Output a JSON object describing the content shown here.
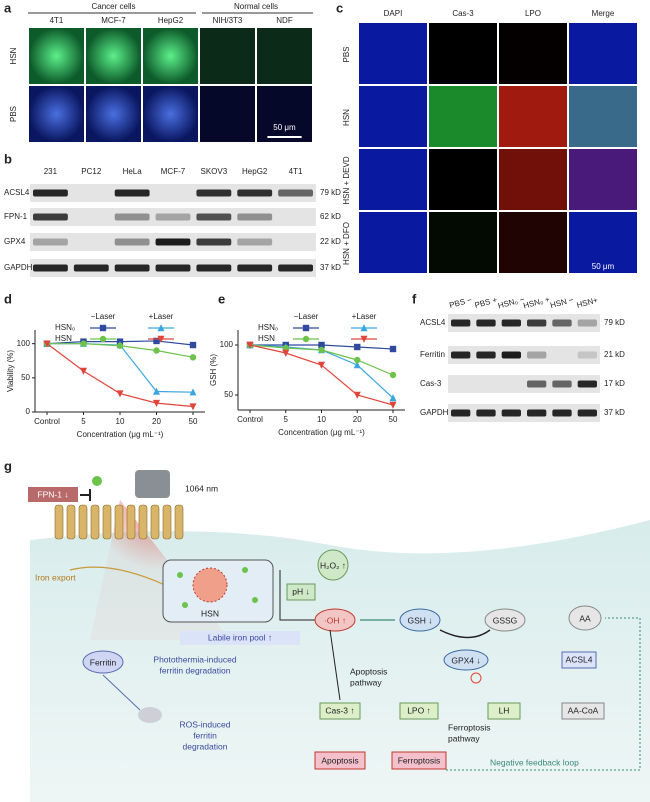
{
  "panel_a": {
    "label": "a",
    "groups": [
      "Cancer cells",
      "Normal cells"
    ],
    "columns": [
      "4T1",
      "MCF-7",
      "HepG2",
      "NIH/3T3",
      "NDF"
    ],
    "rows": [
      "HSN",
      "PBS"
    ],
    "scale": "50 μm"
  },
  "panel_b": {
    "label": "b",
    "lanes": [
      "231",
      "PC12",
      "HeLa",
      "MCF-7",
      "SKOV3",
      "HepG2",
      "4T1"
    ],
    "proteins": [
      {
        "name": "ACSL4",
        "size": "79 kD"
      },
      {
        "name": "FPN-1",
        "size": "62 kD"
      },
      {
        "name": "GPX4",
        "size": "22 kD"
      },
      {
        "name": "GAPDH",
        "size": "37 kD"
      }
    ]
  },
  "panel_c": {
    "label": "c",
    "columns": [
      "DAPI",
      "Cas-3",
      "LPO",
      "Merge"
    ],
    "rows": [
      "PBS",
      "HSN",
      "HSN + DEVD",
      "HSN + DFO"
    ],
    "scale": "50 μm"
  },
  "panel_d": {
    "label": "d",
    "type": "line",
    "ylabel": "Viability (%)",
    "xlabel": "Concentration (μg mL⁻¹)",
    "categories": [
      "Control",
      "5",
      "10",
      "20",
      "50"
    ],
    "ylim": [
      0,
      120
    ],
    "yticks": [
      0,
      50,
      100
    ],
    "legend": {
      "columns": [
        "−Laser",
        "+Laser"
      ],
      "rows": [
        "HSN₀",
        "HSN"
      ]
    },
    "series": [
      {
        "color": "#2f4a9e",
        "marker": "square",
        "values": [
          100,
          103,
          103,
          104,
          98
        ]
      },
      {
        "color": "#3aa6e0",
        "marker": "triangle-up",
        "values": [
          100,
          100,
          98,
          30,
          29
        ]
      },
      {
        "color": "#6cc24a",
        "marker": "circle",
        "values": [
          100,
          100,
          97,
          90,
          80
        ]
      },
      {
        "color": "#e0453c",
        "marker": "triangle-down",
        "values": [
          100,
          60,
          27,
          13,
          8
        ]
      }
    ]
  },
  "panel_e": {
    "label": "e",
    "type": "line",
    "ylabel": "GSH (%)",
    "xlabel": "Concentration (μg mL⁻¹)",
    "categories": [
      "Control",
      "5",
      "10",
      "20",
      "50"
    ],
    "ylim": [
      35,
      115
    ],
    "yticks": [
      50,
      100
    ],
    "legend": {
      "columns": [
        "−Laser",
        "+Laser"
      ],
      "rows": [
        "HSN₀",
        "HSN"
      ]
    },
    "series": [
      {
        "color": "#2f4a9e",
        "marker": "square",
        "values": [
          100,
          100,
          100,
          98,
          96
        ]
      },
      {
        "color": "#3aa6e0",
        "marker": "triangle-up",
        "values": [
          100,
          98,
          95,
          80,
          47
        ]
      },
      {
        "color": "#6cc24a",
        "marker": "circle",
        "values": [
          100,
          97,
          95,
          85,
          70
        ]
      },
      {
        "color": "#e0453c",
        "marker": "triangle-down",
        "values": [
          100,
          92,
          80,
          50,
          40
        ]
      }
    ]
  },
  "panel_f": {
    "label": "f",
    "lanes": [
      "PBS −",
      "PBS +",
      "HSN₀ −",
      "HSN₀ +",
      "HSN −",
      "HSN+"
    ],
    "proteins": [
      {
        "name": "ACSL4",
        "size": "79 kD"
      },
      {
        "name": "Ferritin",
        "size": "21 kD"
      },
      {
        "name": "Cas-3",
        "size": "17 kD"
      },
      {
        "name": "GAPDH",
        "size": "37 kD"
      }
    ]
  },
  "panel_g": {
    "label": "g",
    "fpn": "FPN-1 ↓",
    "laser": "1064 nm",
    "iron_export": "Iron export",
    "hsn": "HSN",
    "h2o2": "H₂O₂ ↑",
    "ph": "pH ↓",
    "oh": "·OH ↑",
    "gsh": "GSH ↓",
    "gssg": "GSSG",
    "aa": "AA",
    "labile": "Labile iron pool ↑",
    "ferritin": "Ferritin",
    "photo": [
      "Photothermia-induced",
      "ferritin degradation"
    ],
    "apoptosis_pathway": [
      "Apoptosis",
      "pathway"
    ],
    "gpx4": "GPX4 ↓",
    "acsl4": "ACSL4",
    "cas3": "Cas-3 ↑",
    "lpo": "LPO ↑",
    "lh": "LH",
    "aacoa": "AA-CoA",
    "ferroptosis_pathway": [
      "Ferroptosis",
      "pathway"
    ],
    "ros": [
      "ROS-induced",
      "ferritin",
      "degradation"
    ],
    "apoptosis": "Apoptosis",
    "ferroptosis": "Ferroptosis",
    "feedback": "Negative feedback loop"
  }
}
